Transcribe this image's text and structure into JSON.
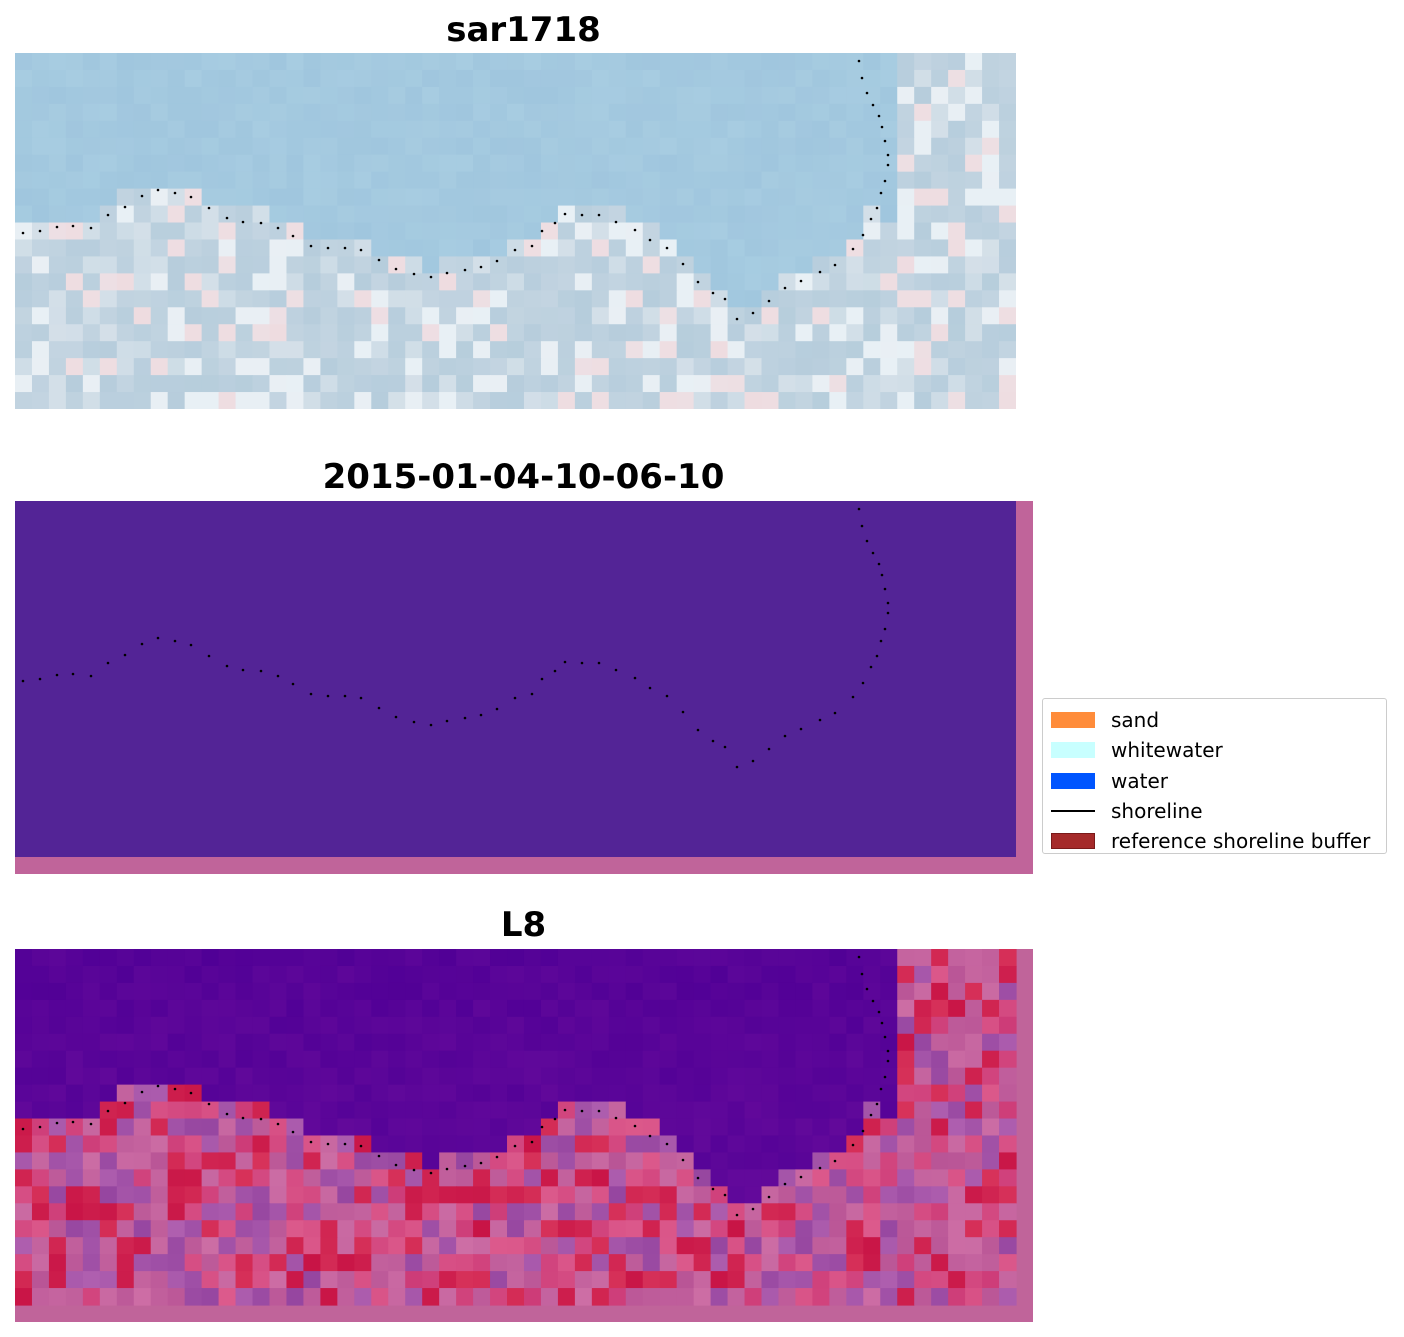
{
  "panels": [
    {
      "title": "sar1718",
      "style": "rgb"
    },
    {
      "title": "2015-01-04-10-06-10",
      "style": "classified"
    },
    {
      "title": "L8",
      "style": "index"
    }
  ],
  "legend": {
    "items": [
      {
        "label": "sand",
        "kind": "patch",
        "color": "#ff8c3a"
      },
      {
        "label": "whitewater",
        "kind": "patch",
        "color": "#c8ffff"
      },
      {
        "label": "water",
        "kind": "patch",
        "color": "#0055ff"
      },
      {
        "label": "shoreline",
        "kind": "line",
        "color": "#000000"
      },
      {
        "label": "reference shoreline buffer",
        "kind": "patch",
        "color": "#a52a2a"
      }
    ]
  },
  "colors": {
    "classified_fill": "#532496",
    "buffer_edge": "#c0649a",
    "shoreline_dots": "#000000"
  }
}
